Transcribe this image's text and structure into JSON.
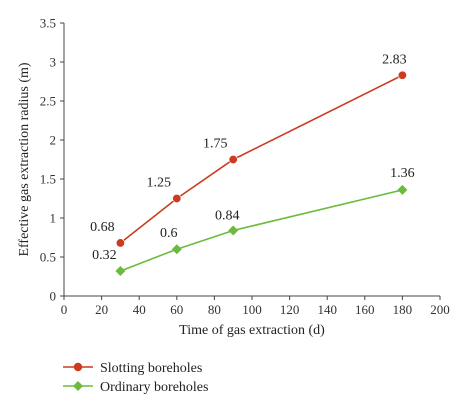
{
  "chart_data": {
    "type": "line",
    "title": "",
    "xlabel": "Time of gas extraction (d)",
    "ylabel": "Effective gas extraction radius (m)",
    "xlim": [
      0,
      200
    ],
    "ylim": [
      0,
      3.5
    ],
    "x_ticks": [
      "0",
      "20",
      "40",
      "60",
      "80",
      "100",
      "120",
      "140",
      "160",
      "180",
      "200"
    ],
    "y_ticks": [
      "0",
      "0.5",
      "1",
      "1.5",
      "2",
      "2.5",
      "3",
      "3.5"
    ],
    "grid": false,
    "legend_position": "bottom-left",
    "series": [
      {
        "name": "Slotting boreholes",
        "color": "#cc3a1f",
        "marker": "circle",
        "x": [
          30,
          60,
          90,
          180
        ],
        "y": [
          0.68,
          1.25,
          1.75,
          2.83
        ],
        "labels": [
          "0.68",
          "1.25",
          "1.75",
          "2.83"
        ]
      },
      {
        "name": "Ordinary boreholes",
        "color": "#6dbb3e",
        "marker": "diamond",
        "x": [
          30,
          60,
          90,
          180
        ],
        "y": [
          0.32,
          0.6,
          0.84,
          1.36
        ],
        "labels": [
          "0.32",
          "0.6",
          "0.84",
          "1.36"
        ]
      }
    ]
  }
}
